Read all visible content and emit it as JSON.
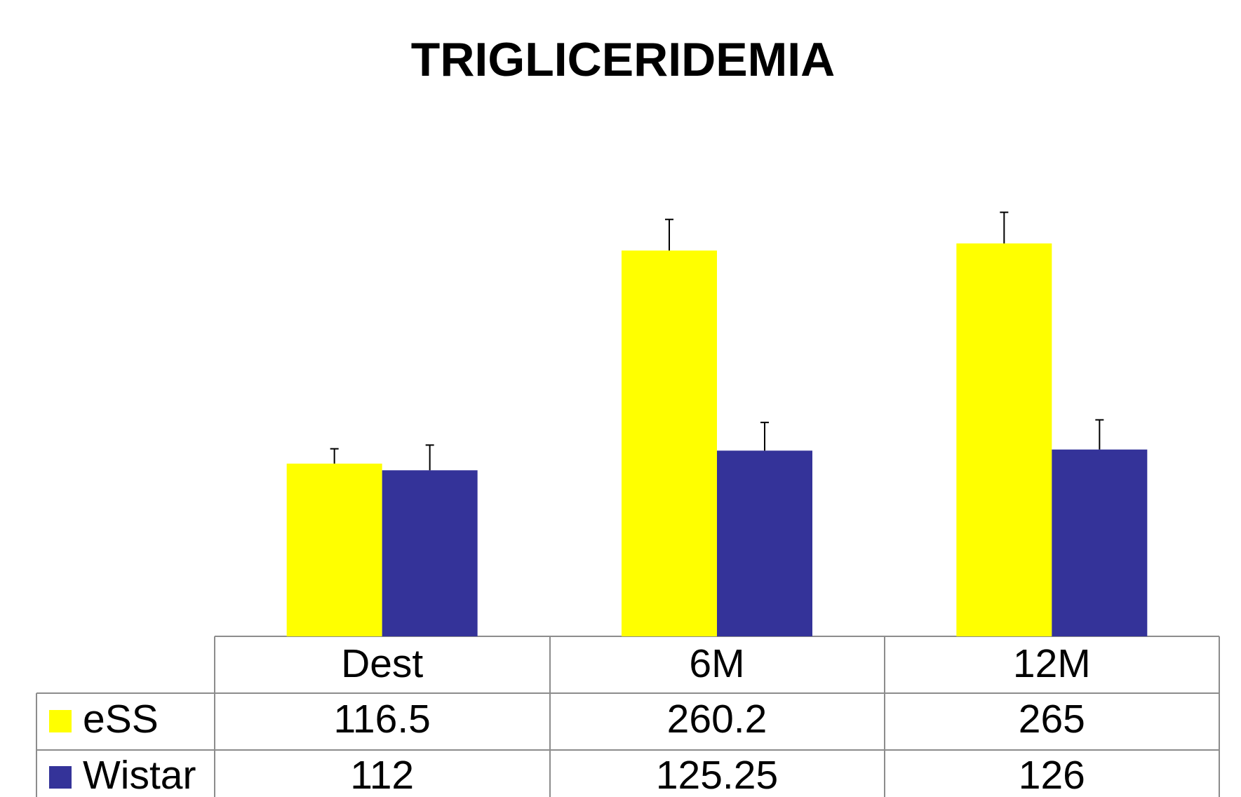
{
  "chart_data": {
    "type": "bar",
    "title": "TRIGLICERIDEMIA",
    "categories": [
      "Dest",
      "6M",
      "12M"
    ],
    "series": [
      {
        "name": "eSS",
        "color": "#ffff00",
        "values": [
          116.5,
          260.2,
          265
        ],
        "errors": [
          10,
          21,
          21
        ]
      },
      {
        "name": "Wistar",
        "color": "#343399",
        "values": [
          112,
          125.25,
          126
        ],
        "errors": [
          17,
          19,
          20
        ]
      }
    ],
    "ylim": [
      0,
      300
    ]
  }
}
